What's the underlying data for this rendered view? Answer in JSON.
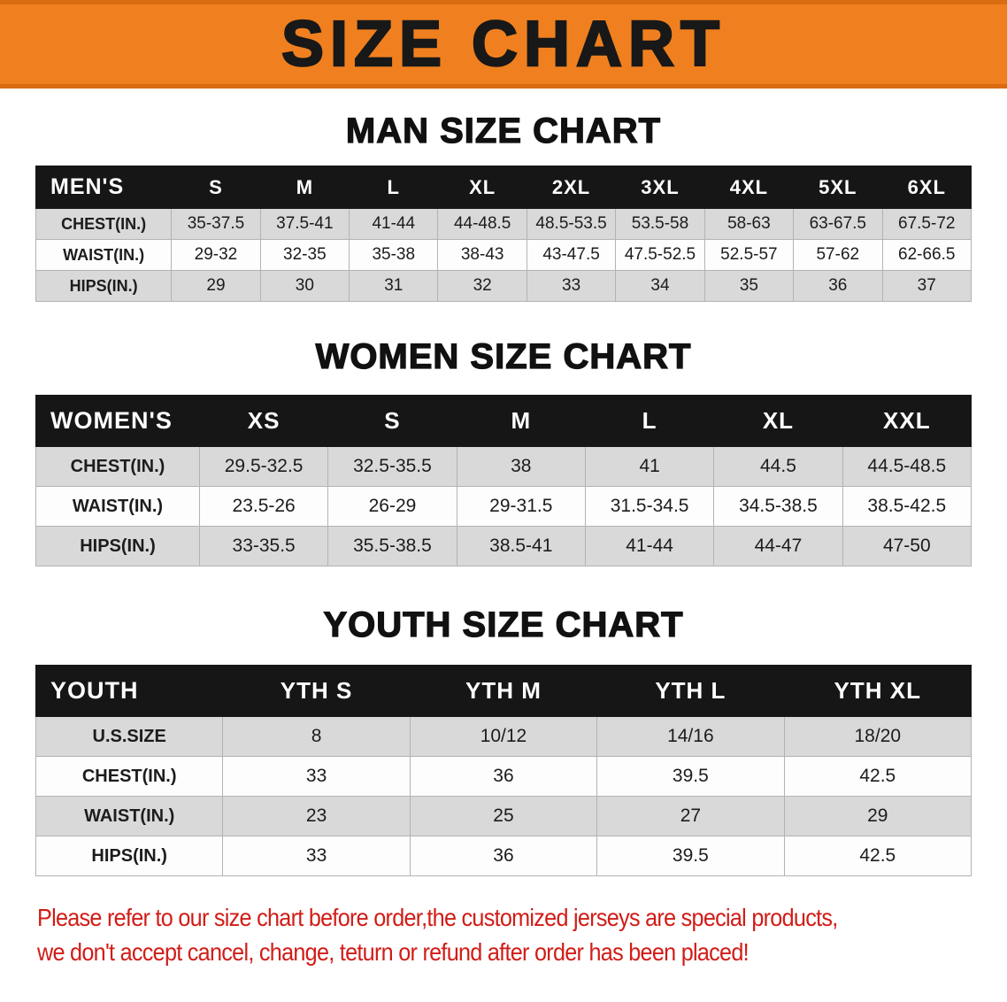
{
  "colors": {
    "banner_bg": "#f0801f",
    "banner_edge": "#d96b10",
    "banner_text": "#181818",
    "table_header_bg": "#161616",
    "table_header_text": "#ffffff",
    "row_alt_bg": "#d9d9d9",
    "disclaimer_text": "#d11c17"
  },
  "banner": {
    "title": "SIZE CHART"
  },
  "sections": [
    {
      "id": "men",
      "heading": "MAN SIZE CHART",
      "table": {
        "header": [
          "MEN'S",
          "S",
          "M",
          "L",
          "XL",
          "2XL",
          "3XL",
          "4XL",
          "5XL",
          "6XL"
        ],
        "rows": [
          [
            "CHEST(IN.)",
            "35-37.5",
            "37.5-41",
            "41-44",
            "44-48.5",
            "48.5-53.5",
            "53.5-58",
            "58-63",
            "63-67.5",
            "67.5-72"
          ],
          [
            "WAIST(IN.)",
            "29-32",
            "32-35",
            "35-38",
            "38-43",
            "43-47.5",
            "47.5-52.5",
            "52.5-57",
            "57-62",
            "62-66.5"
          ],
          [
            "HIPS(IN.)",
            "29",
            "30",
            "31",
            "32",
            "33",
            "34",
            "35",
            "36",
            "37"
          ]
        ]
      }
    },
    {
      "id": "women",
      "heading": "WOMEN SIZE CHART",
      "table": {
        "header": [
          "WOMEN'S",
          "XS",
          "S",
          "M",
          "L",
          "XL",
          "XXL"
        ],
        "rows": [
          [
            "CHEST(IN.)",
            "29.5-32.5",
            "32.5-35.5",
            "38",
            "41",
            "44.5",
            "44.5-48.5"
          ],
          [
            "WAIST(IN.)",
            "23.5-26",
            "26-29",
            "29-31.5",
            "31.5-34.5",
            "34.5-38.5",
            "38.5-42.5"
          ],
          [
            "HIPS(IN.)",
            "33-35.5",
            "35.5-38.5",
            "38.5-41",
            "41-44",
            "44-47",
            "47-50"
          ]
        ]
      }
    },
    {
      "id": "youth",
      "heading": "YOUTH SIZE CHART",
      "table": {
        "header": [
          "YOUTH",
          "YTH S",
          "YTH M",
          "YTH L",
          "YTH XL"
        ],
        "rows": [
          [
            "U.S.SIZE",
            "8",
            "10/12",
            "14/16",
            "18/20"
          ],
          [
            "CHEST(IN.)",
            "33",
            "36",
            "39.5",
            "42.5"
          ],
          [
            "WAIST(IN.)",
            "23",
            "25",
            "27",
            "29"
          ],
          [
            "HIPS(IN.)",
            "33",
            "36",
            "39.5",
            "42.5"
          ]
        ]
      }
    }
  ],
  "disclaimer": {
    "lines": [
      "Please refer to our size chart before order,the customized jerseys are special products,",
      "we don't accept cancel, change, teturn or refund after order has been placed!"
    ]
  }
}
